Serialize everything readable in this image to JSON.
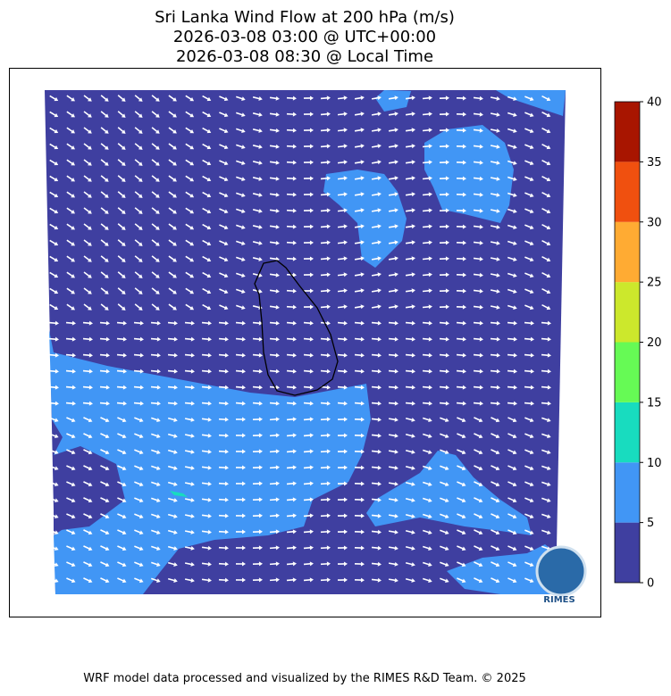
{
  "title": [
    "Sri Lanka Wind Flow at 200 hPa (m/s)",
    "2026-03-08 03:00 @ UTC+00:00",
    "2026-03-08 08:30 @ Local Time"
  ],
  "colorbar": {
    "ticks": [
      0,
      5,
      10,
      15,
      20,
      25,
      30,
      35,
      40
    ],
    "colors": [
      "#3f3fa0",
      "#4196f5",
      "#18dcbf",
      "#66fa55",
      "#cce82c",
      "#ffab33",
      "#f0500f",
      "#a81500"
    ]
  },
  "logo": "RIMES",
  "footer": "WRF model data processed and visualized by the RIMES R&D Team. © 2025"
}
